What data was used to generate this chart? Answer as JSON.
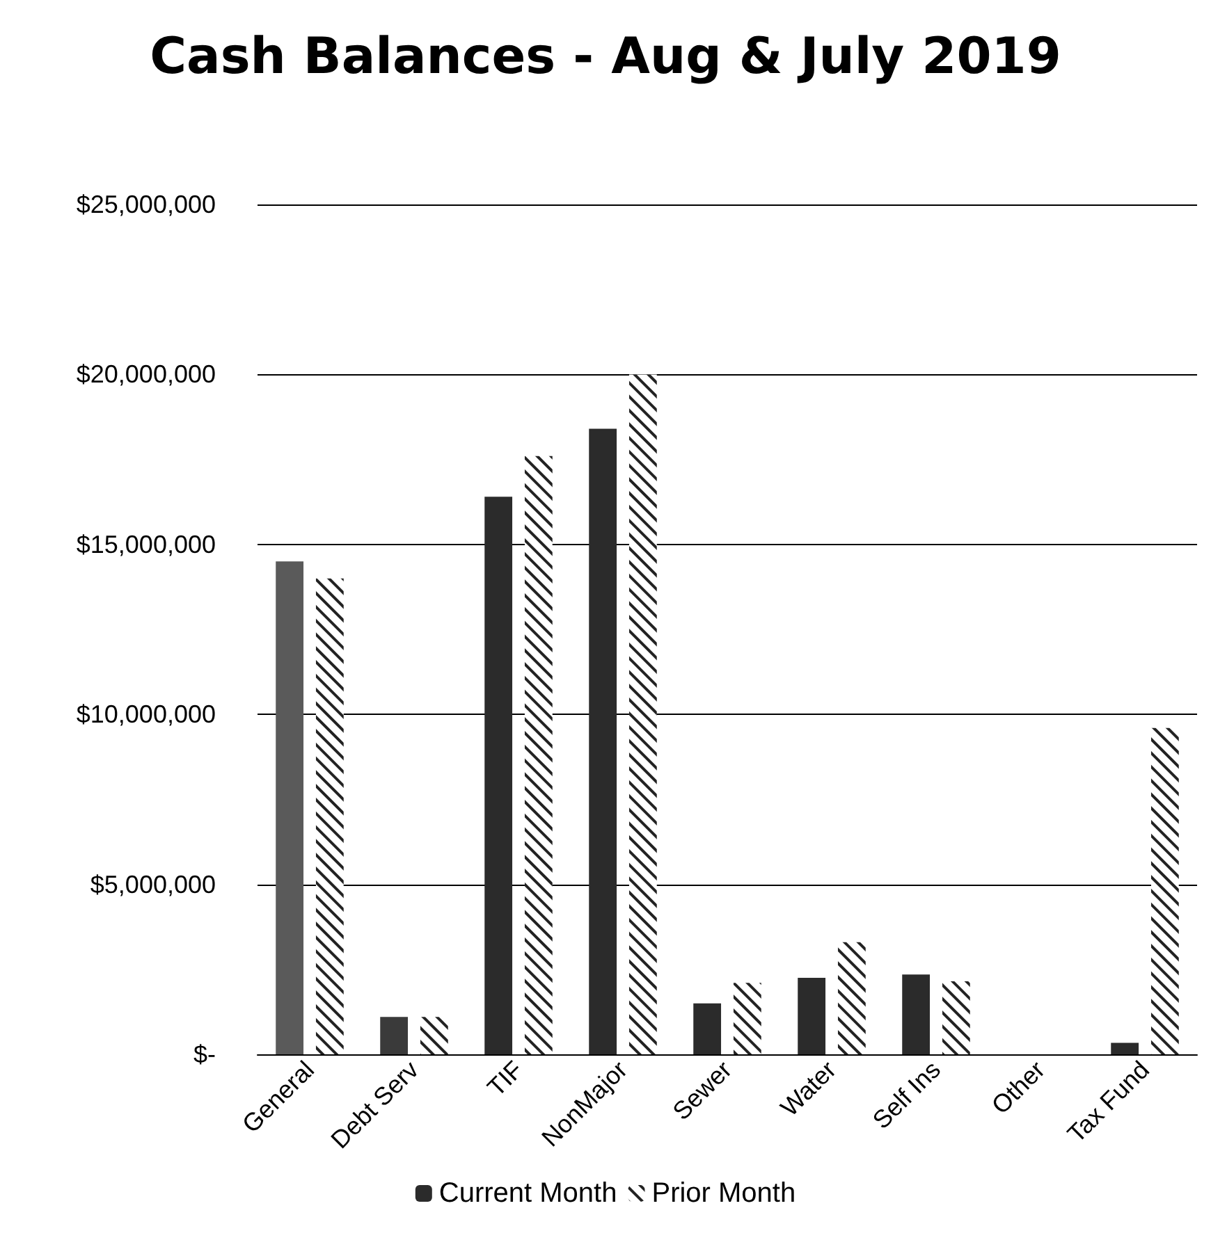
{
  "chart_data": {
    "type": "bar",
    "title": "Cash Balances - Aug & July 2019",
    "categories": [
      "General",
      "Debt Serv",
      "TIF",
      "NonMajor",
      "Sewer",
      "Water",
      "Self Ins",
      "Other",
      "Tax Fund"
    ],
    "series": [
      {
        "name": "Current Month",
        "color": "#2b2b2b",
        "colors": [
          "#5a5a5a",
          "#3a3a3a",
          "#2b2b2b",
          "#2b2b2b",
          "#2b2b2b",
          "#2b2b2b",
          "#2b2b2b",
          "#2b2b2b",
          "#2b2b2b"
        ],
        "values": [
          14500000,
          1100000,
          16400000,
          18400000,
          1500000,
          2250000,
          2350000,
          0,
          340000
        ]
      },
      {
        "name": "Prior Month",
        "color": "#ffffff",
        "values": [
          14000000,
          1100000,
          17600000,
          20000000,
          2100000,
          3300000,
          2150000,
          0,
          9600000
        ]
      }
    ],
    "ylim": [
      0,
      25000000
    ],
    "yticks": [
      {
        "value": 0,
        "label": "$-"
      },
      {
        "value": 5000000,
        "label": "$5,000,000"
      },
      {
        "value": 10000000,
        "label": "$10,000,000"
      },
      {
        "value": 15000000,
        "label": "$15,000,000"
      },
      {
        "value": 20000000,
        "label": "$20,000,000"
      },
      {
        "value": 25000000,
        "label": "$25,000,000"
      }
    ],
    "grid": "y",
    "legend": "bottom"
  }
}
